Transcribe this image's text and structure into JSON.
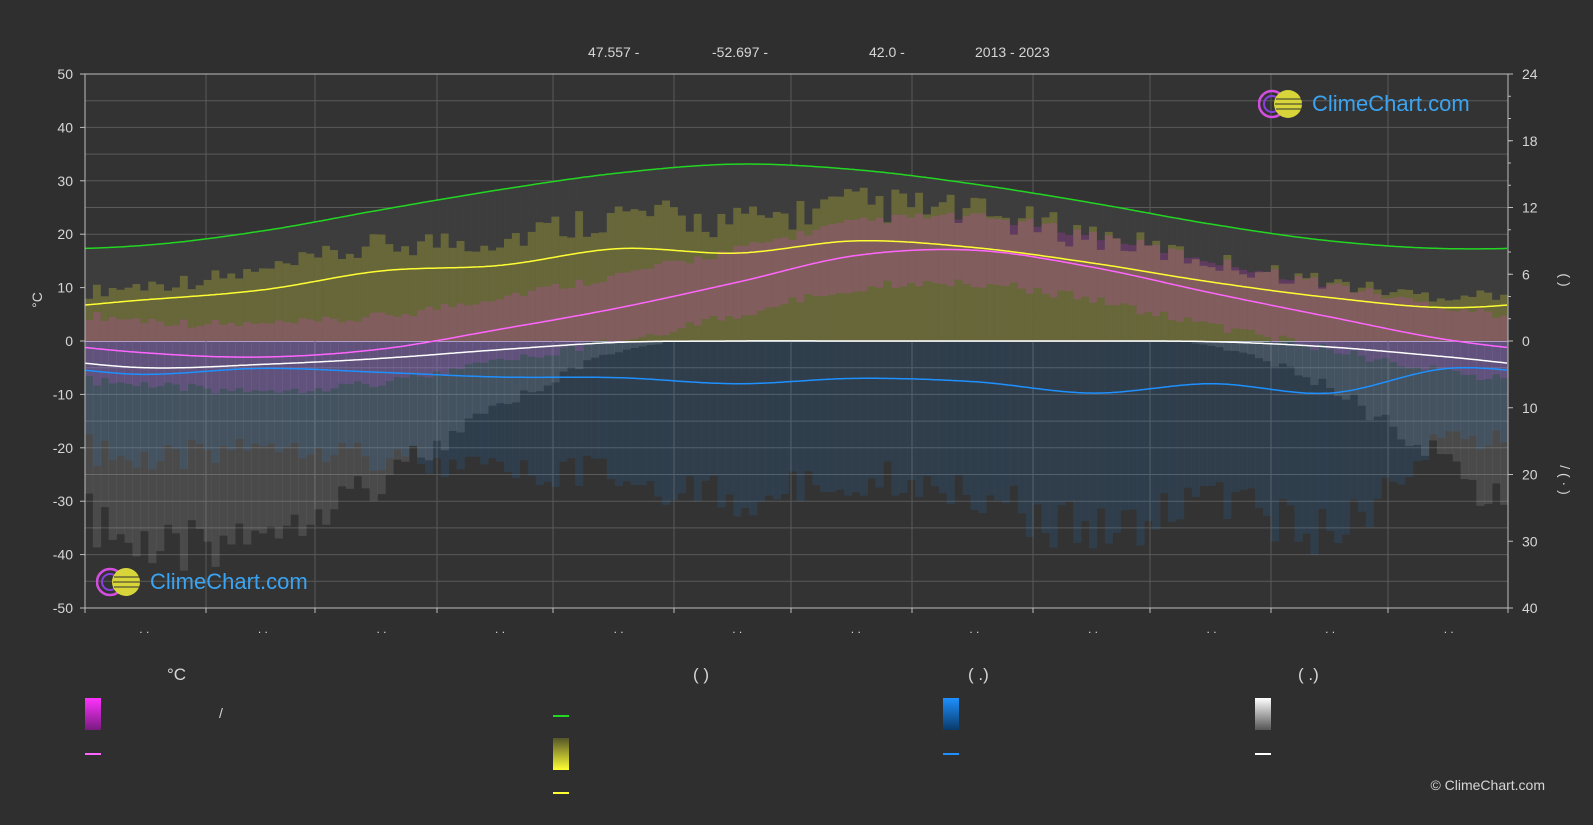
{
  "header": {
    "lat": "47.557 -",
    "lon": "-52.697 -",
    "elev": "42.0 -",
    "years": "2013 - 2023"
  },
  "chart_data": {
    "type": "line",
    "x": [
      "",
      "",
      "",
      "",
      "",
      "",
      "",
      "",
      "",
      "",
      "",
      ""
    ],
    "month_labels": [
      ". .",
      ". .",
      ". .",
      ". .",
      ". .",
      ". .",
      ". .",
      ". .",
      ". .",
      ". .",
      ". .",
      ". ."
    ],
    "left_axis": {
      "label": "°C",
      "ylim": [
        -50,
        50
      ],
      "ticks": [
        50,
        40,
        30,
        20,
        10,
        0,
        -10,
        -20,
        -30,
        -40,
        -50
      ]
    },
    "right_axis_upper": {
      "ylim": [
        0,
        24
      ],
      "ticks": [
        24,
        18,
        12,
        6,
        0
      ],
      "label": "(     )"
    },
    "right_axis_lower": {
      "ylim": [
        0,
        40
      ],
      "ticks": [
        0,
        10,
        20,
        30,
        40
      ],
      "label": "/     (   ·   )"
    },
    "grid": true,
    "series": [
      {
        "key": "daylight",
        "color": "#22d622",
        "axis": "hours",
        "values": [
          8.6,
          9.9,
          11.8,
          13.6,
          15.1,
          15.9,
          15.4,
          14.1,
          12.4,
          10.5,
          9.0,
          8.3
        ]
      },
      {
        "key": "sunshine",
        "color": "#ffff33",
        "axis": "hours",
        "values": [
          3.7,
          4.6,
          6.3,
          6.8,
          8.3,
          7.9,
          9.0,
          8.4,
          7.0,
          5.3,
          3.9,
          3.0
        ]
      },
      {
        "key": "mean_temp",
        "color": "#ff66ff",
        "axis": "celsius",
        "values": [
          -2.2,
          -3.0,
          -1.5,
          2.2,
          6.2,
          11.0,
          16.0,
          17.0,
          13.8,
          9.0,
          4.5,
          0.2
        ]
      },
      {
        "key": "snow_mean",
        "color": "#ffffff",
        "axis": "snow",
        "values": [
          4.0,
          3.5,
          2.6,
          1.3,
          0.2,
          0.0,
          0.0,
          0.0,
          0.0,
          0.1,
          0.9,
          2.4
        ]
      },
      {
        "key": "rain_mean",
        "color": "#1e90ff",
        "axis": "precip",
        "values": [
          5.0,
          4.1,
          4.7,
          5.4,
          5.5,
          6.4,
          5.6,
          6.1,
          7.8,
          6.4,
          7.8,
          4.1
        ]
      }
    ],
    "bands": {
      "temp_range_color": "#ff33ff",
      "sunshine_band_color": "#ffff33",
      "rain_band_color": "#1e90ff",
      "snow_band_color": "#c8c8c8"
    }
  },
  "legend": {
    "col1_title": "°C",
    "col1_items": [
      "/",
      ""
    ],
    "col2_title": "(          )",
    "col3_title": "(    .)",
    "col4_title": "(    .)",
    "colors": {
      "temp": "#ff33ff",
      "daylight": "#22d622",
      "sunshine": "#ffff33",
      "rain": "#1e90ff",
      "snow": "#ffffff"
    }
  },
  "brand": {
    "logo_text": "ClimeChart.com",
    "copyright": "© ClimeChart.com"
  }
}
